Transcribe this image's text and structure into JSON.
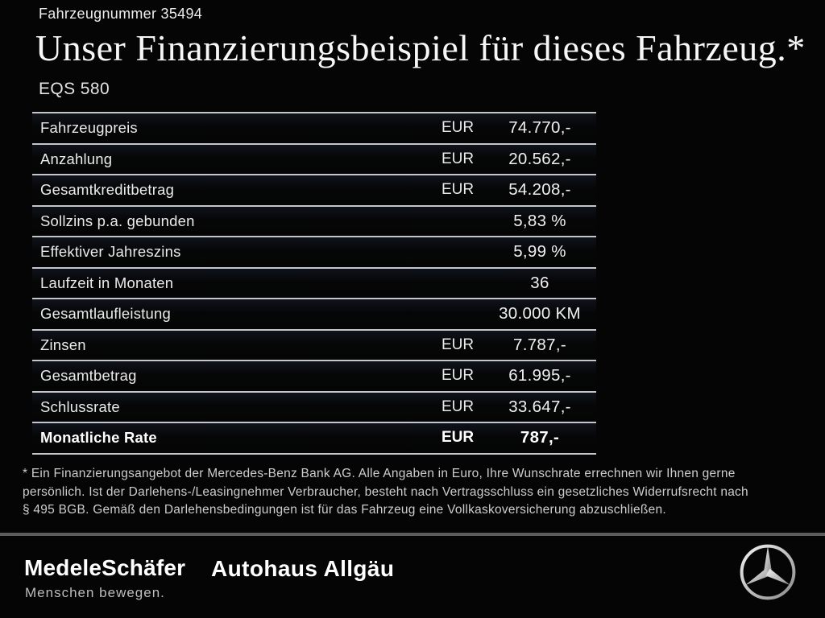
{
  "header": {
    "vehicle_number": "Fahrzeugnummer 35494",
    "title": "Unser Finanzierungsbeispiel für dieses Fahrzeug.*",
    "model": "EQS 580"
  },
  "financing_table": {
    "rows": [
      {
        "label": "Fahrzeugpreis",
        "currency": "EUR",
        "value": "74.770,-",
        "bold": false
      },
      {
        "label": "Anzahlung",
        "currency": "EUR",
        "value": "20.562,-",
        "bold": false
      },
      {
        "label": "Gesamtkreditbetrag",
        "currency": "EUR",
        "value": "54.208,-",
        "bold": false
      },
      {
        "label": "Sollzins p.a. gebunden",
        "currency": "",
        "value": "5,83 %",
        "bold": false
      },
      {
        "label": "Effektiver Jahreszins",
        "currency": "",
        "value": "5,99 %",
        "bold": false
      },
      {
        "label": "Laufzeit in Monaten",
        "currency": "",
        "value": "36",
        "bold": false
      },
      {
        "label": "Gesamtlaufleistung",
        "currency": "",
        "value": "30.000 KM",
        "bold": false
      },
      {
        "label": "Zinsen",
        "currency": "EUR",
        "value": "7.787,-",
        "bold": false
      },
      {
        "label": "Gesamtbetrag",
        "currency": "EUR",
        "value": "61.995,-",
        "bold": false
      },
      {
        "label": "Schlussrate",
        "currency": "EUR",
        "value": "33.647,-",
        "bold": false
      },
      {
        "label": "Monatliche Rate",
        "currency": "EUR",
        "value": "787,-",
        "bold": true
      }
    ]
  },
  "footnote": {
    "lines": [
      "* Ein Finanzierungsangebot der Mercedes-Benz Bank AG. Alle Angaben in Euro, Ihre Wunschrate errechnen wir Ihnen gerne",
      "persönlich. Ist der Darlehens-/Leasingnehmer Verbraucher, besteht nach Vertragsschluss ein gesetzliches Widerrufsrecht nach",
      "§ 495 BGB. Gemäß den Darlehensbedingungen ist für das Fahrzeug eine Vollkaskoversicherung abzuschließen."
    ]
  },
  "footer": {
    "dealer_name": "MedeleSchäfer",
    "dealer_tagline": "Menschen bewegen.",
    "dealer_name_2": "Autohaus Allgäu",
    "brand_icon": "mercedes-star-icon"
  },
  "colors": {
    "background": "#050505",
    "table_line": "#c3c6ca",
    "footer_divider": "#5c5c5c",
    "text_primary": "#f7f7f7",
    "text_muted": "#cdcdcd",
    "star_silver": "#d9d9d9"
  }
}
